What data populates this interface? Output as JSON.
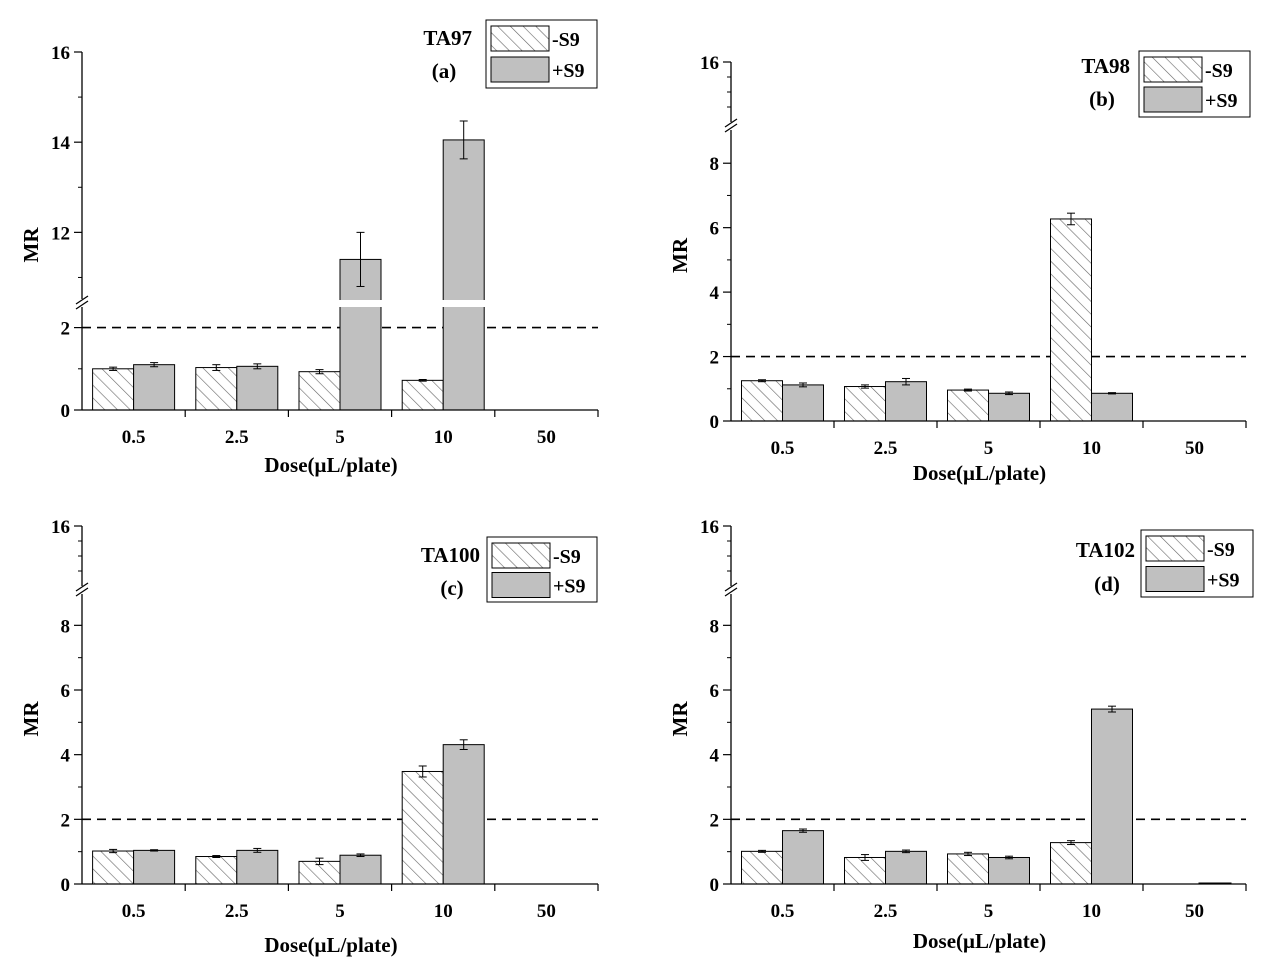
{
  "colors": {
    "plus_s9_fill": "#c0c0c0",
    "bar_stroke": "#000000",
    "hatch_stroke": "#555555",
    "threshold_line": "#000000"
  },
  "legend": {
    "minus_label": "-S9",
    "plus_label": "+S9"
  },
  "chart_data": [
    {
      "type": "bar",
      "strain": "TA97",
      "panel": "(a)",
      "xlabel": "Dose(μL/plate)",
      "ylabel": "MR",
      "categories": [
        "0.5",
        "2.5",
        "5",
        "10",
        "50"
      ],
      "series": [
        {
          "name": "-S9",
          "values": [
            1.0,
            1.03,
            0.93,
            0.72,
            0
          ],
          "errors": [
            0.04,
            0.07,
            0.05,
            0.02,
            0
          ]
        },
        {
          "name": "+S9",
          "values": [
            1.1,
            1.06,
            11.4,
            14.05,
            0
          ],
          "errors": [
            0.05,
            0.06,
            0.6,
            0.42,
            0
          ]
        }
      ],
      "threshold": 2,
      "y_ticks": [
        0,
        2,
        12,
        14,
        16
      ],
      "axis_break": {
        "lower_range": [
          0,
          2.5
        ],
        "upper_range": [
          10.5,
          16
        ]
      }
    },
    {
      "type": "bar",
      "strain": "TA98",
      "panel": "(b)",
      "xlabel": "Dose(μL/plate)",
      "ylabel": "MR",
      "categories": [
        "0.5",
        "2.5",
        "5",
        "10",
        "50"
      ],
      "series": [
        {
          "name": "-S9",
          "values": [
            1.25,
            1.07,
            0.96,
            6.27,
            0
          ],
          "errors": [
            0.03,
            0.05,
            0.03,
            0.18,
            0
          ]
        },
        {
          "name": "+S9",
          "values": [
            1.12,
            1.22,
            0.86,
            0.86,
            0
          ],
          "errors": [
            0.06,
            0.1,
            0.04,
            0.02,
            0
          ]
        }
      ],
      "threshold": 2,
      "y_ticks": [
        0,
        2,
        4,
        6,
        8,
        16
      ],
      "axis_break": {
        "lower_range": [
          0,
          9
        ],
        "upper_range": [
          16,
          16
        ]
      }
    },
    {
      "type": "bar",
      "strain": "TA100",
      "panel": "(c)",
      "xlabel": "Dose(μL/plate)",
      "ylabel": "MR",
      "categories": [
        "0.5",
        "2.5",
        "5",
        "10",
        "50"
      ],
      "series": [
        {
          "name": "-S9",
          "values": [
            1.02,
            0.85,
            0.7,
            3.48,
            0
          ],
          "errors": [
            0.05,
            0.03,
            0.1,
            0.17,
            0
          ]
        },
        {
          "name": "+S9",
          "values": [
            1.04,
            1.04,
            0.89,
            4.31,
            0
          ],
          "errors": [
            0.02,
            0.06,
            0.04,
            0.15,
            0
          ]
        }
      ],
      "threshold": 2,
      "y_ticks": [
        0,
        2,
        4,
        6,
        8,
        16
      ],
      "axis_break": {
        "lower_range": [
          0,
          9
        ],
        "upper_range": [
          16,
          16
        ]
      }
    },
    {
      "type": "bar",
      "strain": "TA102",
      "panel": "(d)",
      "xlabel": "Dose(μL/plate)",
      "ylabel": "MR",
      "categories": [
        "0.5",
        "2.5",
        "5",
        "10",
        "50"
      ],
      "series": [
        {
          "name": "-S9",
          "values": [
            1.01,
            0.82,
            0.93,
            1.28,
            0
          ],
          "errors": [
            0.03,
            0.09,
            0.05,
            0.06,
            0
          ]
        },
        {
          "name": "+S9",
          "values": [
            1.65,
            1.01,
            0.82,
            5.41,
            0.02
          ],
          "errors": [
            0.05,
            0.04,
            0.04,
            0.09,
            0.01
          ]
        }
      ],
      "threshold": 2,
      "y_ticks": [
        0,
        2,
        4,
        6,
        8,
        16
      ],
      "axis_break": {
        "lower_range": [
          0,
          9
        ],
        "upper_range": [
          16,
          16
        ]
      }
    }
  ]
}
